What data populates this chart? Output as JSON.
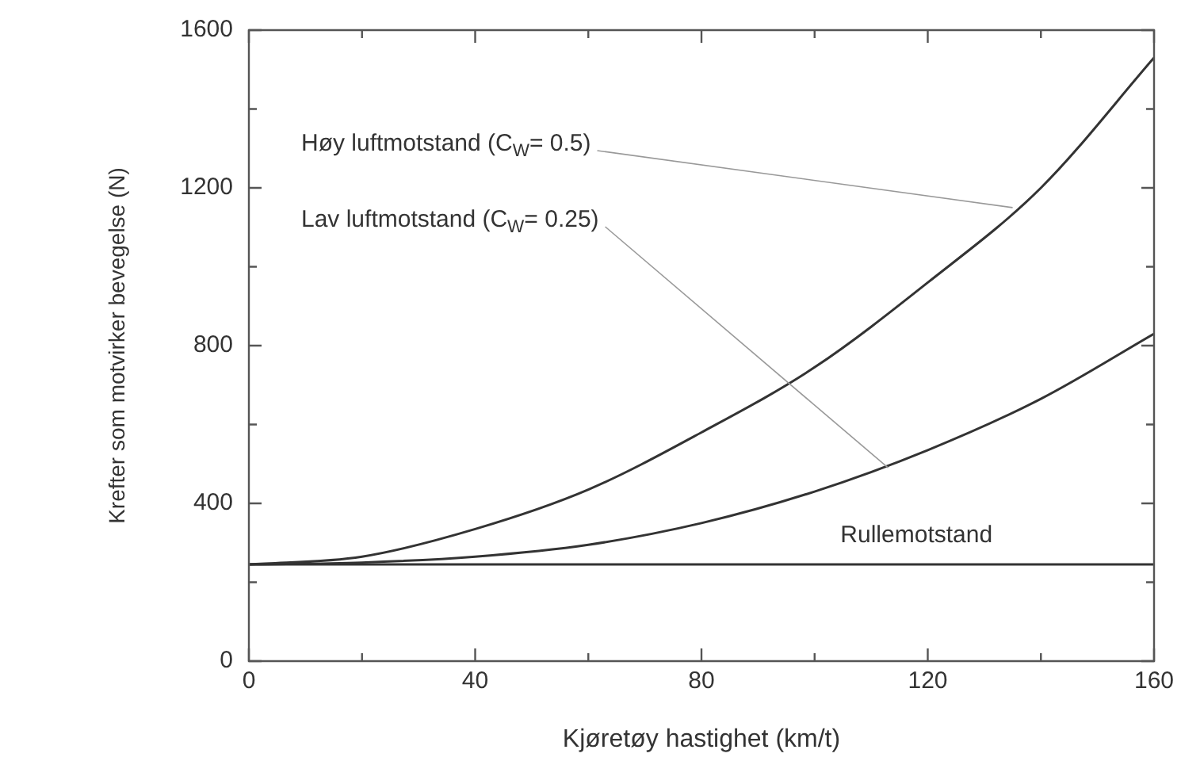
{
  "chart_data": {
    "type": "line",
    "xlabel": "Kjøretøy hastighet (km/t)",
    "ylabel": "Krefter som motvirker bevegelse (N)",
    "x": [
      0,
      20,
      40,
      60,
      80,
      100,
      120,
      140,
      160
    ],
    "series": [
      {
        "color": "#333333",
        "values": [
          245,
          265,
          335,
          435,
          580,
          745,
          960,
          1200,
          1530
        ]
      },
      {
        "color": "#333333",
        "values": [
          245,
          250,
          265,
          295,
          350,
          430,
          535,
          665,
          830
        ]
      },
      {
        "color": "#333333",
        "values": [
          245,
          245,
          245,
          245,
          245,
          245,
          245,
          245,
          245
        ]
      }
    ],
    "xlim": [
      0,
      160
    ],
    "ylim": [
      0,
      1600
    ],
    "xticks": [
      0,
      {
        "value": 20,
        "label": null
      },
      40,
      {
        "value": 60,
        "label": null
      },
      80,
      {
        "value": 100,
        "label": null
      },
      120,
      {
        "value": 140,
        "label": null
      },
      160
    ],
    "yticks": [
      0,
      {
        "value": 200,
        "label": null
      },
      400,
      {
        "value": 600,
        "label": null
      },
      800,
      {
        "value": 1000,
        "label": null
      },
      1200,
      {
        "value": 1400,
        "label": null
      },
      1600
    ],
    "annotations": [
      {
        "text": "Høy luftmotstand (C$_{W}$= 0.5)",
        "x": 135,
        "y": 1150
      },
      {
        "text": "Lav luftmotstand (C$_{W}$= 0.25)",
        "x": 113,
        "y": 490
      },
      {
        "text": "Rullemotstand",
        "x": 118,
        "y": 245
      }
    ],
    "grid": false,
    "legend": false,
    "marker": "none",
    "line_style": "solid"
  }
}
